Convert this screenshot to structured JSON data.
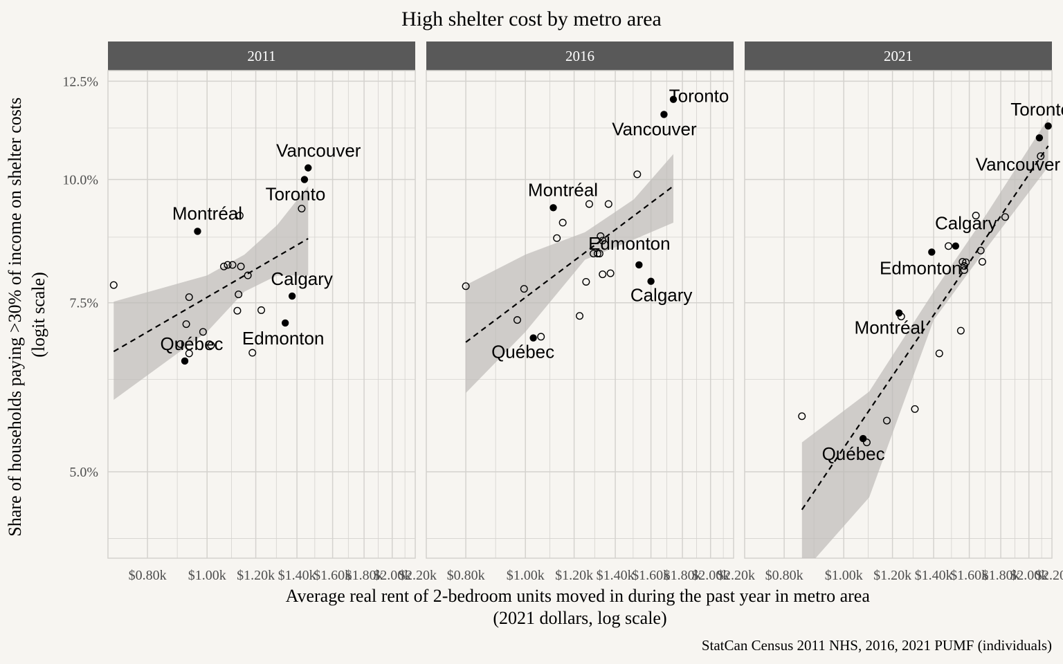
{
  "title": "High shelter cost by metro area",
  "caption": "StatCan Census 2011 NHS, 2016, 2021 PUMF (individuals)",
  "colors": {
    "background": "#f7f5f1",
    "strip": "#595959",
    "strip_text": "#ffffff",
    "grid": "#d4d2ce",
    "ribbon": "#bdbbb8",
    "point": "#000000",
    "trend": "#000000",
    "axis_text": "#4d4d4d"
  },
  "chart_data": {
    "type": "scatter",
    "xlabel": "Average real rent of 2-bedroom units moved in during the past year in metro area\n(2021 dollars, log scale)",
    "ylabel": "Share of households paying >30% of income on shelter costs\n(logit scale)",
    "x_scale": "log",
    "y_scale": "logit",
    "xlim": [
      690,
      2180
    ],
    "ylim": [
      0.0405,
      0.128
    ],
    "x_ticks": [
      800,
      1000,
      1200,
      1400,
      1600,
      1800,
      2000,
      2200
    ],
    "x_tick_labels": [
      "$0.80k",
      "$1.00k",
      "$1.20k",
      "$1.40k",
      "$1.60k",
      "$1.80k",
      "$2.00k",
      "$2.20k"
    ],
    "y_ticks": [
      0.05,
      0.075,
      0.1,
      0.125
    ],
    "y_tick_labels": [
      "5.0%",
      "7.5%",
      "10.0%",
      "12.5%"
    ],
    "grid": true,
    "trend": "dashed linear fit with grey confidence band",
    "facets": [
      {
        "label": "2011",
        "named": [
          {
            "name": "Vancouver",
            "x": 1460,
            "y": 0.1027
          },
          {
            "name": "Toronto",
            "x": 1440,
            "y": 0.1
          },
          {
            "name": "Montréal",
            "x": 965,
            "y": 0.0887
          },
          {
            "name": "Calgary",
            "x": 1375,
            "y": 0.0762
          },
          {
            "name": "Edmonton",
            "x": 1340,
            "y": 0.0715
          },
          {
            "name": "Québec",
            "x": 920,
            "y": 0.0653
          }
        ],
        "others": [
          {
            "x": 705,
            "y": 0.0782
          },
          {
            "x": 1130,
            "y": 0.092
          },
          {
            "x": 1425,
            "y": 0.0935
          },
          {
            "x": 1065,
            "y": 0.0817
          },
          {
            "x": 1080,
            "y": 0.082
          },
          {
            "x": 1100,
            "y": 0.082
          },
          {
            "x": 1135,
            "y": 0.0817
          },
          {
            "x": 1165,
            "y": 0.08
          },
          {
            "x": 1125,
            "y": 0.0765
          },
          {
            "x": 935,
            "y": 0.076
          },
          {
            "x": 1120,
            "y": 0.0736
          },
          {
            "x": 1225,
            "y": 0.0737
          },
          {
            "x": 925,
            "y": 0.0713
          },
          {
            "x": 985,
            "y": 0.07
          },
          {
            "x": 905,
            "y": 0.068
          },
          {
            "x": 1015,
            "y": 0.0678
          },
          {
            "x": 935,
            "y": 0.0665
          },
          {
            "x": 1185,
            "y": 0.0666
          }
        ],
        "trend": {
          "x": [
            705,
            1460
          ],
          "y": [
            0.0668,
            0.0872
          ]
        },
        "band": {
          "x": [
            705,
            1000,
            1150,
            1300,
            1460
          ],
          "upper": [
            0.0752,
            0.08,
            0.084,
            0.09,
            0.0985
          ],
          "lower": [
            0.0595,
            0.07,
            0.077,
            0.08,
            0.08
          ]
        }
      },
      {
        "label": "2016",
        "named": [
          {
            "name": "Toronto",
            "x": 1740,
            "y": 0.12
          },
          {
            "name": "Vancouver",
            "x": 1680,
            "y": 0.116
          },
          {
            "name": "Montréal",
            "x": 1110,
            "y": 0.0937
          },
          {
            "name": "Edmonton",
            "x": 1530,
            "y": 0.082
          },
          {
            "name": "Calgary",
            "x": 1600,
            "y": 0.0789
          },
          {
            "name": "Québec",
            "x": 1030,
            "y": 0.069
          }
        ],
        "others": [
          {
            "x": 800,
            "y": 0.078
          },
          {
            "x": 1520,
            "y": 0.1012
          },
          {
            "x": 1365,
            "y": 0.0945
          },
          {
            "x": 1270,
            "y": 0.0945
          },
          {
            "x": 1150,
            "y": 0.0905
          },
          {
            "x": 1125,
            "y": 0.0873
          },
          {
            "x": 1325,
            "y": 0.0877
          },
          {
            "x": 1335,
            "y": 0.0868
          },
          {
            "x": 1290,
            "y": 0.0842
          },
          {
            "x": 1310,
            "y": 0.0842
          },
          {
            "x": 1320,
            "y": 0.0842
          },
          {
            "x": 995,
            "y": 0.0775
          },
          {
            "x": 1255,
            "y": 0.0788
          },
          {
            "x": 1335,
            "y": 0.0802
          },
          {
            "x": 1375,
            "y": 0.0804
          },
          {
            "x": 1225,
            "y": 0.0727
          },
          {
            "x": 970,
            "y": 0.072
          },
          {
            "x": 1060,
            "y": 0.0692
          }
        ],
        "trend": {
          "x": [
            800,
            1740
          ],
          "y": [
            0.0683,
            0.0985
          ]
        },
        "band": {
          "x": [
            800,
            1000,
            1250,
            1500,
            1740
          ],
          "upper": [
            0.0782,
            0.084,
            0.0885,
            0.0955,
            0.106
          ],
          "lower": [
            0.0605,
            0.07,
            0.083,
            0.087,
            0.0905
          ]
        }
      },
      {
        "label": "2021",
        "named": [
          {
            "name": "Toronto",
            "x": 2150,
            "y": 0.113
          },
          {
            "name": "Vancouver",
            "x": 2080,
            "y": 0.11
          },
          {
            "name": "Calgary",
            "x": 1520,
            "y": 0.0857
          },
          {
            "name": "Edmonton",
            "x": 1390,
            "y": 0.0845
          },
          {
            "name": "Montréal",
            "x": 1230,
            "y": 0.0732
          },
          {
            "name": "Québec",
            "x": 1075,
            "y": 0.0542
          }
        ],
        "others": [
          {
            "x": 1640,
            "y": 0.092
          },
          {
            "x": 1830,
            "y": 0.0917
          },
          {
            "x": 2090,
            "y": 0.1055
          },
          {
            "x": 1480,
            "y": 0.0857
          },
          {
            "x": 1670,
            "y": 0.0848
          },
          {
            "x": 1560,
            "y": 0.0826
          },
          {
            "x": 1580,
            "y": 0.0825
          },
          {
            "x": 1680,
            "y": 0.0826
          },
          {
            "x": 1570,
            "y": 0.0818
          },
          {
            "x": 1570,
            "y": 0.081
          },
          {
            "x": 1240,
            "y": 0.0726
          },
          {
            "x": 1550,
            "y": 0.0702
          },
          {
            "x": 1430,
            "y": 0.0665
          },
          {
            "x": 855,
            "y": 0.0572
          },
          {
            "x": 1175,
            "y": 0.0566
          },
          {
            "x": 1305,
            "y": 0.0582
          },
          {
            "x": 1090,
            "y": 0.0537
          }
        ],
        "trend": {
          "x": [
            855,
            2150
          ],
          "y": [
            0.0456,
            0.108
          ]
        },
        "band": {
          "x": [
            855,
            1100,
            1400,
            1700,
            2150
          ],
          "upper": [
            0.0537,
            0.0607,
            0.077,
            0.092,
            0.115
          ],
          "lower": [
            0.039,
            0.047,
            0.072,
            0.085,
            0.103
          ]
        }
      }
    ]
  }
}
